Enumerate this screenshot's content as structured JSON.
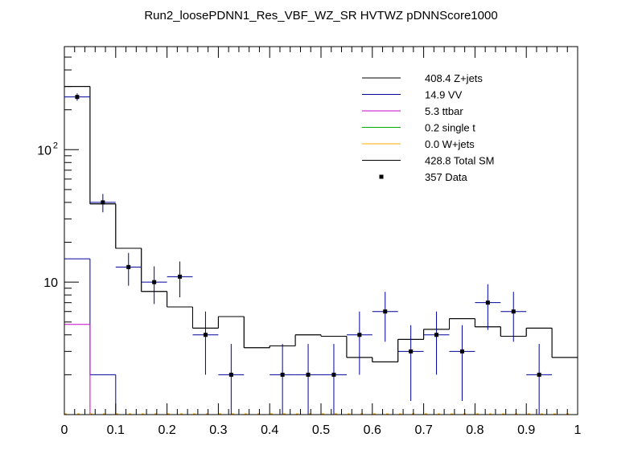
{
  "chart_data": {
    "type": "histogram",
    "title": "Run2_loosePDNN1_Res_VBF_WZ_SR HVTWZ  pDNNScore1000",
    "xlabel": "",
    "ylabel": "",
    "xlim": [
      0,
      1
    ],
    "ylim": [
      1,
      600
    ],
    "yscale": "log",
    "bin_edges": [
      0,
      0.05,
      0.1,
      0.15,
      0.2,
      0.25,
      0.3,
      0.35,
      0.4,
      0.45,
      0.5,
      0.55,
      0.6,
      0.65,
      0.7,
      0.75,
      0.8,
      0.85,
      0.9,
      0.95,
      1.0
    ],
    "x_ticks": [
      {
        "value": 0,
        "label": "0"
      },
      {
        "value": 0.1,
        "label": "0.1"
      },
      {
        "value": 0.2,
        "label": "0.2"
      },
      {
        "value": 0.3,
        "label": "0.3"
      },
      {
        "value": 0.4,
        "label": "0.4"
      },
      {
        "value": 0.5,
        "label": "0.5"
      },
      {
        "value": 0.6,
        "label": "0.6"
      },
      {
        "value": 0.7,
        "label": "0.7"
      },
      {
        "value": 0.8,
        "label": "0.8"
      },
      {
        "value": 0.9,
        "label": "0.9"
      },
      {
        "value": 1,
        "label": "1"
      }
    ],
    "y_ticks": [
      {
        "value": 10,
        "label": "10",
        "sup": ""
      },
      {
        "value": 100,
        "label": "10",
        "sup": "2"
      }
    ],
    "series": [
      {
        "name": "Z+jets",
        "yield": "408.4",
        "color": "#000000",
        "values": [
          300,
          39,
          18,
          8.5,
          6.5,
          4.5,
          5.5,
          3.2,
          3.3,
          4.0,
          3.9,
          2.7,
          2.5,
          3.7,
          4.4,
          5.3,
          4.6,
          3.9,
          4.5,
          2.7
        ]
      },
      {
        "name": "VV",
        "yield": "14.9",
        "color": "#000099",
        "values": [
          15,
          2.0,
          0,
          0,
          0,
          0,
          0,
          0,
          0,
          0,
          0,
          0,
          0,
          0,
          0,
          0,
          0,
          0,
          0,
          0
        ]
      },
      {
        "name": "ttbar",
        "yield": "5.3",
        "color": "#cc00cc",
        "values": [
          4.8,
          0,
          0,
          0,
          0,
          0,
          0,
          0,
          0,
          0,
          0,
          0,
          0,
          0,
          0,
          0,
          0,
          0,
          0,
          0
        ]
      },
      {
        "name": "single t",
        "yield": "0.2",
        "color": "#00aa00",
        "values": [
          0,
          0,
          0,
          0,
          0,
          0,
          0,
          0,
          0,
          0,
          0,
          0,
          0,
          0,
          0,
          0,
          0,
          0,
          0,
          0
        ]
      },
      {
        "name": "W+jets",
        "yield": "0.0",
        "color": "#ffaa00",
        "values": [
          0,
          0,
          0,
          0,
          0,
          0,
          0,
          0,
          0,
          0,
          0,
          0,
          0,
          0,
          0,
          0,
          0,
          0,
          0,
          0
        ]
      },
      {
        "name": "Total SM",
        "yield": "428.8",
        "color": "#000000",
        "values": [
          300,
          39,
          18,
          8.5,
          6.5,
          4.5,
          5.5,
          3.2,
          3.3,
          4.0,
          3.9,
          2.7,
          2.5,
          3.7,
          4.4,
          5.3,
          4.6,
          3.9,
          4.5,
          2.7
        ]
      }
    ],
    "data": {
      "name": "Data",
      "yield": "357",
      "color": "#000000",
      "points": [
        {
          "x": 0.025,
          "y": 250
        },
        {
          "x": 0.075,
          "y": 40
        },
        {
          "x": 0.125,
          "y": 13
        },
        {
          "x": 0.175,
          "y": 10
        },
        {
          "x": 0.225,
          "y": 11
        },
        {
          "x": 0.275,
          "y": 4
        },
        {
          "x": 0.325,
          "y": 2
        },
        {
          "x": 0.425,
          "y": 2
        },
        {
          "x": 0.475,
          "y": 2
        },
        {
          "x": 0.525,
          "y": 2
        },
        {
          "x": 0.575,
          "y": 4
        },
        {
          "x": 0.625,
          "y": 6
        },
        {
          "x": 0.675,
          "y": 3
        },
        {
          "x": 0.725,
          "y": 4
        },
        {
          "x": 0.775,
          "y": 3
        },
        {
          "x": 0.825,
          "y": 7
        },
        {
          "x": 0.875,
          "y": 6
        },
        {
          "x": 0.925,
          "y": 2
        }
      ]
    },
    "legend": {
      "placement": "top-right",
      "entries": [
        {
          "label": "408.4 Z+jets",
          "color": "#000000",
          "marker": "line"
        },
        {
          "label": "14.9 VV",
          "color": "#000099",
          "marker": "line"
        },
        {
          "label": "5.3 ttbar",
          "color": "#cc00cc",
          "marker": "line"
        },
        {
          "label": "0.2 single t",
          "color": "#00aa00",
          "marker": "line"
        },
        {
          "label": "0.0 W+jets",
          "color": "#ffaa00",
          "marker": "line"
        },
        {
          "label": "428.8 Total SM",
          "color": "#000000",
          "marker": "line"
        },
        {
          "label": "357 Data",
          "color": "#000000",
          "marker": "point"
        }
      ]
    }
  }
}
